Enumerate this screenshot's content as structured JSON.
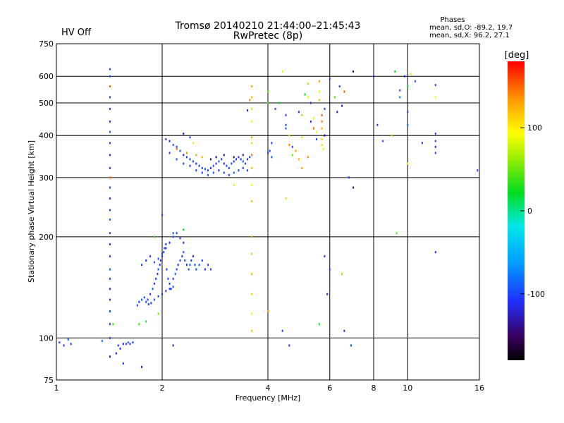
{
  "header": {
    "title_line1": "Tromsø 20140210 21:44:00–21:45:43",
    "title_line2": "RwPretec (8p)",
    "status": "HV Off",
    "status_color": "#cc0000",
    "phases_title": "Phases",
    "phases_o": "mean, sd,O: -89.2, 19.7",
    "phases_x": "mean, sd,X:  96.2, 27.1"
  },
  "colorbar": {
    "label": "[deg]",
    "ticks": [
      {
        "value": 100,
        "label": "100"
      },
      {
        "value": 0,
        "label": "0"
      },
      {
        "value": -100,
        "label": "-100"
      }
    ],
    "range": [
      -180,
      180
    ]
  },
  "chart_data": {
    "type": "scatter",
    "xlabel": "Frequency [MHz]",
    "ylabel": "Stationary phase Virtual Height [km]",
    "xscale": "log",
    "yscale": "log",
    "xlim": [
      1,
      16
    ],
    "ylim": [
      75,
      750
    ],
    "grid": true,
    "x_ticks": [
      {
        "v": 1,
        "label": "1"
      },
      {
        "v": 2,
        "label": "2"
      },
      {
        "v": 4,
        "label": "4"
      },
      {
        "v": 6,
        "label": "6"
      },
      {
        "v": 8,
        "label": "8"
      },
      {
        "v": 10,
        "label": "10"
      },
      {
        "v": 16,
        "label": "16"
      }
    ],
    "y_ticks": [
      {
        "v": 75,
        "label": "75"
      },
      {
        "v": 100,
        "label": "100"
      },
      {
        "v": 200,
        "label": "200"
      },
      {
        "v": 300,
        "label": "300"
      },
      {
        "v": 400,
        "label": "400"
      },
      {
        "v": 500,
        "label": "500"
      },
      {
        "v": 600,
        "label": "600"
      },
      {
        "v": 750,
        "label": "750"
      }
    ],
    "x_grid": [
      2,
      4,
      6,
      8,
      10
    ],
    "y_grid": [
      100,
      200,
      300,
      400,
      500,
      600
    ],
    "points": [
      [
        1.02,
        97,
        -100
      ],
      [
        1.05,
        95,
        -110
      ],
      [
        1.08,
        99,
        -90
      ],
      [
        1.1,
        96,
        -100
      ],
      [
        1.35,
        98,
        -80
      ],
      [
        1.48,
        90,
        -120
      ],
      [
        1.5,
        95,
        -100
      ],
      [
        1.52,
        93,
        -110
      ],
      [
        1.55,
        96,
        -110
      ],
      [
        1.58,
        96,
        -100
      ],
      [
        1.6,
        97,
        -90
      ],
      [
        1.62,
        96,
        -105
      ],
      [
        1.65,
        97,
        -100
      ],
      [
        1.55,
        84,
        -100
      ],
      [
        1.75,
        82,
        -110
      ],
      [
        1.45,
        110,
        40
      ],
      [
        1.42,
        630,
        -100
      ],
      [
        1.42,
        600,
        -90
      ],
      [
        1.42,
        560,
        150
      ],
      [
        1.42,
        520,
        -100
      ],
      [
        1.42,
        480,
        -110
      ],
      [
        1.42,
        440,
        -100
      ],
      [
        1.42,
        410,
        -90
      ],
      [
        1.42,
        380,
        -100
      ],
      [
        1.42,
        350,
        -110
      ],
      [
        1.42,
        320,
        -100
      ],
      [
        1.42,
        300,
        150
      ],
      [
        1.42,
        280,
        -100
      ],
      [
        1.42,
        260,
        -110
      ],
      [
        1.42,
        240,
        -100
      ],
      [
        1.42,
        225,
        -90
      ],
      [
        1.42,
        205,
        -100
      ],
      [
        1.42,
        190,
        -110
      ],
      [
        1.42,
        175,
        -100
      ],
      [
        1.42,
        160,
        -90
      ],
      [
        1.42,
        150,
        -100
      ],
      [
        1.42,
        140,
        -110
      ],
      [
        1.42,
        130,
        -100
      ],
      [
        1.42,
        120,
        -95
      ],
      [
        1.42,
        110,
        -100
      ],
      [
        1.42,
        100,
        -100
      ],
      [
        1.42,
        88,
        -130
      ],
      [
        1.82,
        130,
        -100
      ],
      [
        1.85,
        135,
        -110
      ],
      [
        1.88,
        140,
        -90
      ],
      [
        1.9,
        145,
        -100
      ],
      [
        1.92,
        150,
        -100
      ],
      [
        1.94,
        155,
        -110
      ],
      [
        1.95,
        160,
        -90
      ],
      [
        1.97,
        165,
        -100
      ],
      [
        1.98,
        170,
        -110
      ],
      [
        2.0,
        175,
        -100
      ],
      [
        2.02,
        180,
        -100
      ],
      [
        2.03,
        185,
        -90
      ],
      [
        2.05,
        190,
        -110
      ],
      [
        2.06,
        160,
        -100
      ],
      [
        2.08,
        150,
        -95
      ],
      [
        2.1,
        145,
        -100
      ],
      [
        2.12,
        140,
        -100
      ],
      [
        2.15,
        150,
        -100
      ],
      [
        2.18,
        155,
        -90
      ],
      [
        2.2,
        160,
        -100
      ],
      [
        2.22,
        165,
        -110
      ],
      [
        2.25,
        170,
        -100
      ],
      [
        2.28,
        175,
        -100
      ],
      [
        2.3,
        180,
        -90
      ],
      [
        2.32,
        170,
        -100
      ],
      [
        2.35,
        165,
        -110
      ],
      [
        2.38,
        160,
        -100
      ],
      [
        2.4,
        165,
        -90
      ],
      [
        2.42,
        170,
        -100
      ],
      [
        2.45,
        175,
        -110
      ],
      [
        2.48,
        165,
        -100
      ],
      [
        2.5,
        160,
        -100
      ],
      [
        2.55,
        165,
        -90
      ],
      [
        2.6,
        170,
        -100
      ],
      [
        2.65,
        160,
        -110
      ],
      [
        2.7,
        165,
        -100
      ],
      [
        2.75,
        160,
        -100
      ],
      [
        1.7,
        125,
        -100
      ],
      [
        1.72,
        128,
        -110
      ],
      [
        1.75,
        130,
        -90
      ],
      [
        1.78,
        132,
        -100
      ],
      [
        1.8,
        128,
        -100
      ],
      [
        1.83,
        126,
        -110
      ],
      [
        1.86,
        127,
        -100
      ],
      [
        1.9,
        130,
        -90
      ],
      [
        1.95,
        133,
        -100
      ],
      [
        2.0,
        135,
        -110
      ],
      [
        2.05,
        138,
        -100
      ],
      [
        2.1,
        140,
        -100
      ],
      [
        2.15,
        142,
        -90
      ],
      [
        1.75,
        165,
        -100
      ],
      [
        1.8,
        170,
        -110
      ],
      [
        1.85,
        175,
        -100
      ],
      [
        1.9,
        168,
        -90
      ],
      [
        1.95,
        172,
        -100
      ],
      [
        2.0,
        178,
        -100
      ],
      [
        2.05,
        185,
        -110
      ],
      [
        2.1,
        192,
        -100
      ],
      [
        2.15,
        200,
        -90
      ],
      [
        2.2,
        205,
        -100
      ],
      [
        2.25,
        198,
        -100
      ],
      [
        2.3,
        192,
        -110
      ],
      [
        2.0,
        232,
        -100
      ],
      [
        2.15,
        205,
        -90
      ],
      [
        1.9,
        200,
        40
      ],
      [
        2.3,
        210,
        20
      ],
      [
        1.72,
        110,
        40
      ],
      [
        2.15,
        95,
        -120
      ],
      [
        1.8,
        112,
        30
      ],
      [
        1.95,
        118,
        50
      ],
      [
        2.05,
        390,
        -100
      ],
      [
        2.1,
        385,
        -110
      ],
      [
        2.15,
        375,
        -90
      ],
      [
        2.2,
        370,
        -100
      ],
      [
        2.25,
        360,
        -100
      ],
      [
        2.3,
        350,
        -110
      ],
      [
        2.35,
        345,
        -100
      ],
      [
        2.4,
        340,
        -90
      ],
      [
        2.45,
        335,
        -100
      ],
      [
        2.5,
        330,
        -110
      ],
      [
        2.55,
        325,
        -100
      ],
      [
        2.6,
        320,
        -100
      ],
      [
        2.65,
        318,
        -90
      ],
      [
        2.7,
        315,
        -100
      ],
      [
        2.75,
        320,
        -110
      ],
      [
        2.8,
        325,
        -100
      ],
      [
        2.85,
        330,
        -100
      ],
      [
        2.9,
        335,
        -90
      ],
      [
        2.95,
        340,
        -100
      ],
      [
        3.0,
        330,
        -110
      ],
      [
        3.05,
        325,
        -100
      ],
      [
        3.1,
        320,
        -100
      ],
      [
        3.15,
        330,
        -90
      ],
      [
        3.2,
        335,
        -100
      ],
      [
        3.25,
        340,
        -110
      ],
      [
        3.3,
        345,
        -100
      ],
      [
        3.35,
        340,
        -100
      ],
      [
        3.4,
        335,
        -90
      ],
      [
        3.45,
        330,
        -100
      ],
      [
        3.5,
        340,
        -110
      ],
      [
        3.55,
        345,
        -100
      ],
      [
        3.6,
        350,
        -100
      ],
      [
        2.1,
        355,
        -100
      ],
      [
        2.2,
        340,
        -90
      ],
      [
        2.3,
        330,
        -100
      ],
      [
        2.4,
        325,
        -110
      ],
      [
        2.5,
        315,
        -100
      ],
      [
        2.6,
        310,
        -100
      ],
      [
        2.7,
        305,
        -90
      ],
      [
        2.8,
        310,
        -100
      ],
      [
        2.9,
        315,
        -110
      ],
      [
        3.0,
        310,
        -100
      ],
      [
        3.1,
        305,
        -100
      ],
      [
        3.2,
        310,
        -90
      ],
      [
        3.3,
        315,
        -100
      ],
      [
        3.4,
        320,
        -110
      ],
      [
        3.5,
        315,
        -100
      ],
      [
        2.2,
        365,
        150
      ],
      [
        2.35,
        355,
        140
      ],
      [
        2.5,
        350,
        130
      ],
      [
        2.6,
        345,
        120
      ],
      [
        2.75,
        340,
        -140
      ],
      [
        2.85,
        345,
        -140
      ],
      [
        3.0,
        350,
        -140
      ],
      [
        3.2,
        345,
        -140
      ],
      [
        3.4,
        350,
        -140
      ],
      [
        2.4,
        395,
        -100
      ],
      [
        2.3,
        405,
        -120
      ],
      [
        2.45,
        380,
        100
      ],
      [
        3.6,
        560,
        130
      ],
      [
        3.6,
        520,
        120
      ],
      [
        3.6,
        480,
        110
      ],
      [
        3.6,
        440,
        100
      ],
      [
        3.6,
        395,
        130
      ],
      [
        3.6,
        380,
        110
      ],
      [
        3.6,
        350,
        140
      ],
      [
        3.6,
        320,
        120
      ],
      [
        3.6,
        285,
        100
      ],
      [
        3.6,
        255,
        120
      ],
      [
        3.6,
        200,
        130
      ],
      [
        3.6,
        178,
        120
      ],
      [
        3.6,
        155,
        120
      ],
      [
        3.6,
        135,
        110
      ],
      [
        3.6,
        118,
        100
      ],
      [
        3.6,
        105,
        120
      ],
      [
        3.5,
        475,
        -120
      ],
      [
        3.55,
        510,
        140
      ],
      [
        3.2,
        285,
        100
      ],
      [
        4.0,
        540,
        50
      ],
      [
        4.0,
        500,
        40
      ],
      [
        4.0,
        355,
        -100
      ],
      [
        4.05,
        360,
        -100
      ],
      [
        4.1,
        345,
        -90
      ],
      [
        4.1,
        380,
        -100
      ],
      [
        4.2,
        480,
        -100
      ],
      [
        4.3,
        500,
        20
      ],
      [
        4.4,
        620,
        100
      ],
      [
        4.5,
        460,
        -100
      ],
      [
        4.5,
        430,
        -100
      ],
      [
        4.5,
        420,
        -90
      ],
      [
        4.6,
        400,
        110
      ],
      [
        4.6,
        375,
        140
      ],
      [
        4.7,
        370,
        -100
      ],
      [
        4.7,
        350,
        50
      ],
      [
        4.8,
        360,
        130
      ],
      [
        4.9,
        470,
        -100
      ],
      [
        5.0,
        460,
        60
      ],
      [
        5.0,
        395,
        110
      ],
      [
        5.1,
        530,
        20
      ],
      [
        5.2,
        570,
        60
      ],
      [
        5.2,
        520,
        100
      ],
      [
        5.3,
        500,
        -100
      ],
      [
        5.3,
        440,
        -100
      ],
      [
        5.4,
        450,
        100
      ],
      [
        5.4,
        420,
        150
      ],
      [
        5.5,
        410,
        100
      ],
      [
        5.5,
        390,
        -100
      ],
      [
        5.6,
        580,
        130
      ],
      [
        5.6,
        540,
        100
      ],
      [
        5.6,
        510,
        120
      ],
      [
        5.7,
        460,
        160
      ],
      [
        5.7,
        440,
        140
      ],
      [
        5.7,
        420,
        130
      ],
      [
        5.7,
        390,
        110
      ],
      [
        5.7,
        375,
        110
      ],
      [
        5.75,
        365,
        100
      ],
      [
        5.8,
        480,
        -100
      ],
      [
        5.8,
        400,
        -140
      ],
      [
        4.5,
        260,
        110
      ],
      [
        4.9,
        340,
        120
      ],
      [
        5.0,
        320,
        130
      ],
      [
        5.2,
        345,
        140
      ],
      [
        6.0,
        590,
        -100
      ],
      [
        6.2,
        520,
        40
      ],
      [
        6.3,
        470,
        -120
      ],
      [
        6.4,
        560,
        -100
      ],
      [
        6.5,
        490,
        -120
      ],
      [
        6.6,
        540,
        150
      ],
      [
        7.0,
        620,
        -140
      ],
      [
        7.0,
        280,
        -140
      ],
      [
        6.8,
        300,
        -100
      ],
      [
        5.6,
        110,
        30
      ],
      [
        5.8,
        175,
        -100
      ],
      [
        5.9,
        135,
        -110
      ],
      [
        6.0,
        160,
        -100
      ],
      [
        6.5,
        155,
        120
      ],
      [
        6.6,
        105,
        -120
      ],
      [
        6.9,
        95,
        -90
      ],
      [
        4.4,
        105,
        -100
      ],
      [
        4.6,
        95,
        -100
      ],
      [
        4.0,
        120,
        130
      ],
      [
        8.0,
        600,
        -110
      ],
      [
        8.2,
        430,
        -100
      ],
      [
        8.5,
        385,
        -100
      ],
      [
        9.0,
        400,
        120
      ],
      [
        9.2,
        620,
        20
      ],
      [
        9.5,
        520,
        -80
      ],
      [
        9.5,
        545,
        -100
      ],
      [
        9.8,
        600,
        -100
      ],
      [
        10.0,
        560,
        20
      ],
      [
        10.0,
        470,
        -100
      ],
      [
        10.0,
        430,
        -90
      ],
      [
        10.0,
        330,
        100
      ],
      [
        9.3,
        205,
        40
      ],
      [
        10.2,
        610,
        80
      ],
      [
        12.0,
        565,
        -100
      ],
      [
        12.0,
        520,
        100
      ],
      [
        12.0,
        405,
        -100
      ],
      [
        12.0,
        385,
        -100
      ],
      [
        12.0,
        370,
        -110
      ],
      [
        12.0,
        355,
        -100
      ],
      [
        12.0,
        180,
        -110
      ],
      [
        15.8,
        315,
        -100
      ],
      [
        11.0,
        380,
        -100
      ],
      [
        10.5,
        580,
        -90
      ]
    ]
  }
}
